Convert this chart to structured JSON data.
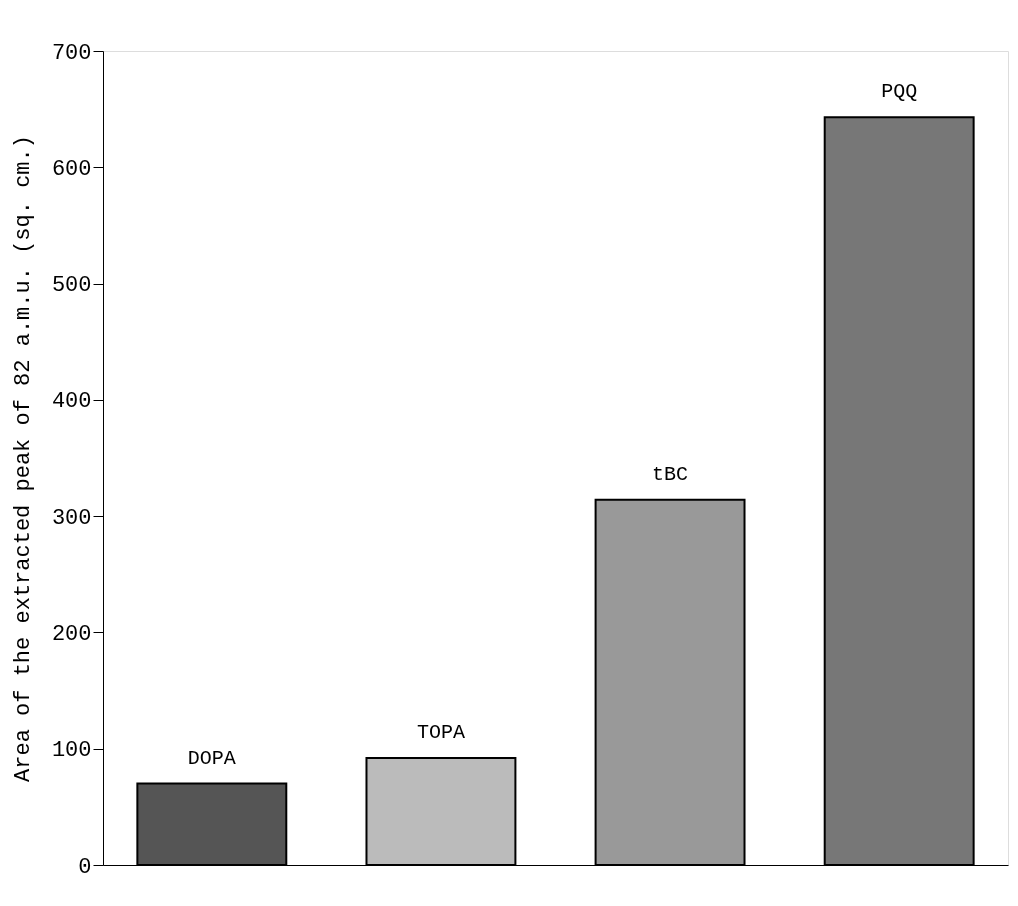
{
  "chart_data": {
    "type": "bar",
    "ylabel": "Area of the extracted peak of 82 a.m.u. (sq. cm.)",
    "categories": [
      "DOPA",
      "TOPA",
      "tBC",
      "PQQ"
    ],
    "values": [
      70,
      92,
      314,
      643
    ],
    "colors": [
      "#555555",
      "#bbbbbb",
      "#999999",
      "#777777"
    ],
    "ylim": [
      0,
      700
    ],
    "yticks": [
      0,
      100,
      200,
      300,
      400,
      500,
      600,
      700
    ],
    "grid": false,
    "tick_labels": "y"
  }
}
